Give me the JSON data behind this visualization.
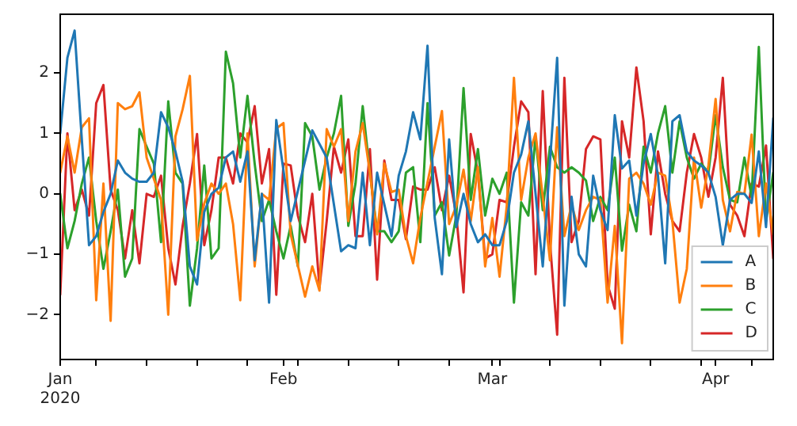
{
  "chart_data": {
    "type": "line",
    "x": [
      "2020-01-01",
      "2020-01-02",
      "2020-01-03",
      "2020-01-04",
      "2020-01-05",
      "2020-01-06",
      "2020-01-07",
      "2020-01-08",
      "2020-01-09",
      "2020-01-10",
      "2020-01-11",
      "2020-01-12",
      "2020-01-13",
      "2020-01-14",
      "2020-01-15",
      "2020-01-16",
      "2020-01-17",
      "2020-01-18",
      "2020-01-19",
      "2020-01-20",
      "2020-01-21",
      "2020-01-22",
      "2020-01-23",
      "2020-01-24",
      "2020-01-25",
      "2020-01-26",
      "2020-01-27",
      "2020-01-28",
      "2020-01-29",
      "2020-01-30",
      "2020-01-31",
      "2020-02-01",
      "2020-02-02",
      "2020-02-03",
      "2020-02-04",
      "2020-02-05",
      "2020-02-06",
      "2020-02-07",
      "2020-02-08",
      "2020-02-09",
      "2020-02-10",
      "2020-02-11",
      "2020-02-12",
      "2020-02-13",
      "2020-02-14",
      "2020-02-15",
      "2020-02-16",
      "2020-02-17",
      "2020-02-18",
      "2020-02-19",
      "2020-02-20",
      "2020-02-21",
      "2020-02-22",
      "2020-02-23",
      "2020-02-24",
      "2020-02-25",
      "2020-02-26",
      "2020-02-27",
      "2020-02-28",
      "2020-02-29",
      "2020-03-01",
      "2020-03-02",
      "2020-03-03",
      "2020-03-04",
      "2020-03-05",
      "2020-03-06",
      "2020-03-07",
      "2020-03-08",
      "2020-03-09",
      "2020-03-10",
      "2020-03-11",
      "2020-03-12",
      "2020-03-13",
      "2020-03-14",
      "2020-03-15",
      "2020-03-16",
      "2020-03-17",
      "2020-03-18",
      "2020-03-19",
      "2020-03-20",
      "2020-03-21",
      "2020-03-22",
      "2020-03-23",
      "2020-03-24",
      "2020-03-25",
      "2020-03-26",
      "2020-03-27",
      "2020-03-28",
      "2020-03-29",
      "2020-03-30",
      "2020-03-31",
      "2020-04-01",
      "2020-04-02",
      "2020-04-03",
      "2020-04-04",
      "2020-04-05",
      "2020-04-06",
      "2020-04-07",
      "2020-04-08",
      "2020-04-09"
    ],
    "series": [
      {
        "name": "A",
        "color": "#1f77b4",
        "x": [
          "2020-01-01",
          "2020-01-02",
          "2020-01-03",
          "2020-01-04",
          "2020-01-05",
          "2020-01-06",
          "2020-01-07",
          "2020-01-08",
          "2020-01-09",
          "2020-01-10",
          "2020-01-11",
          "2020-01-12",
          "2020-01-13",
          "2020-01-14",
          "2020-01-15",
          "2020-01-16",
          "2020-01-17",
          "2020-01-18",
          "2020-01-19",
          "2020-01-20",
          "2020-01-21",
          "2020-01-22",
          "2020-01-23",
          "2020-01-24",
          "2020-01-25",
          "2020-01-26",
          "2020-01-27",
          "2020-01-28",
          "2020-01-29",
          "2020-01-30",
          "2020-01-31",
          "2020-02-02",
          "2020-02-05",
          "2020-02-07",
          "2020-02-09",
          "2020-02-10",
          "2020-02-11",
          "2020-02-12",
          "2020-02-13",
          "2020-02-14",
          "2020-02-16",
          "2020-02-17",
          "2020-02-18",
          "2020-02-19",
          "2020-02-20",
          "2020-02-21",
          "2020-02-22",
          "2020-02-23",
          "2020-02-24",
          "2020-02-25",
          "2020-02-26",
          "2020-02-27",
          "2020-02-28",
          "2020-02-29",
          "2020-03-01",
          "2020-03-02",
          "2020-03-03",
          "2020-03-04",
          "2020-03-05",
          "2020-03-06",
          "2020-03-08",
          "2020-03-10",
          "2020-03-11",
          "2020-03-12",
          "2020-03-13",
          "2020-03-14",
          "2020-03-15",
          "2020-03-16",
          "2020-03-17",
          "2020-03-18",
          "2020-03-19",
          "2020-03-20",
          "2020-03-21",
          "2020-03-22",
          "2020-03-23",
          "2020-03-24",
          "2020-03-25",
          "2020-03-26",
          "2020-03-27",
          "2020-03-28",
          "2020-03-29",
          "2020-03-30",
          "2020-03-31",
          "2020-04-01",
          "2020-04-02",
          "2020-04-03",
          "2020-04-04",
          "2020-04-05",
          "2020-04-06",
          "2020-04-07",
          "2020-04-08",
          "2020-04-09"
        ],
        "values": [
          1.0,
          2.25,
          2.7,
          0.9,
          -0.85,
          -0.7,
          -0.3,
          0.0,
          0.55,
          0.35,
          0.25,
          0.2,
          0.2,
          0.35,
          1.35,
          1.1,
          0.7,
          0.2,
          -1.2,
          -1.5,
          -0.3,
          0.0,
          0.1,
          0.6,
          0.7,
          0.2,
          0.7,
          -1.1,
          0.0,
          -1.8,
          1.22,
          -0.45,
          1.05,
          0.6,
          -0.95,
          -0.85,
          -0.9,
          0.35,
          -0.85,
          0.35,
          -0.7,
          0.3,
          0.7,
          1.35,
          0.9,
          2.45,
          -0.4,
          -1.33,
          0.9,
          -0.55,
          0.0,
          -0.5,
          -0.8,
          -0.67,
          -0.85,
          -0.85,
          -0.45,
          0.35,
          0.65,
          1.2,
          -1.2,
          2.25,
          -1.85,
          -0.05,
          -1.0,
          -1.2,
          0.3,
          -0.27,
          -0.6,
          1.3,
          0.42,
          0.55,
          -0.36,
          0.5,
          0.99,
          0.3,
          -1.15,
          1.2,
          1.3,
          0.7,
          0.55,
          0.47,
          0.35,
          -0.05,
          -0.85,
          -0.1,
          0.0,
          0.0,
          -0.15,
          0.7,
          -0.55,
          1.25
        ]
      },
      {
        "name": "B",
        "color": "#ff7f0e",
        "x": [
          "2020-01-01",
          "2020-01-02",
          "2020-01-03",
          "2020-01-04",
          "2020-01-05",
          "2020-01-06",
          "2020-01-07",
          "2020-01-08",
          "2020-01-09",
          "2020-01-10",
          "2020-01-11",
          "2020-01-12",
          "2020-01-13",
          "2020-01-15",
          "2020-01-16",
          "2020-01-17",
          "2020-01-18",
          "2020-01-19",
          "2020-01-20",
          "2020-01-21",
          "2020-01-22",
          "2020-01-23",
          "2020-01-24",
          "2020-01-25",
          "2020-01-26",
          "2020-01-27",
          "2020-01-28",
          "2020-01-29",
          "2020-01-30",
          "2020-01-31",
          "2020-02-01",
          "2020-02-02",
          "2020-02-04",
          "2020-02-05",
          "2020-02-06",
          "2020-02-07",
          "2020-02-08",
          "2020-02-09",
          "2020-02-10",
          "2020-02-11",
          "2020-02-12",
          "2020-02-13",
          "2020-02-14",
          "2020-02-15",
          "2020-02-16",
          "2020-02-17",
          "2020-02-18",
          "2020-02-19",
          "2020-02-20",
          "2020-02-23",
          "2020-02-24",
          "2020-02-25",
          "2020-02-26",
          "2020-02-27",
          "2020-02-28",
          "2020-02-29",
          "2020-03-01",
          "2020-03-02",
          "2020-03-03",
          "2020-03-04",
          "2020-03-05",
          "2020-03-06",
          "2020-03-07",
          "2020-03-09",
          "2020-03-10",
          "2020-03-11",
          "2020-03-12",
          "2020-03-13",
          "2020-03-14",
          "2020-03-15",
          "2020-03-16",
          "2020-03-17",
          "2020-03-18",
          "2020-03-19",
          "2020-03-20",
          "2020-03-21",
          "2020-03-22",
          "2020-03-23",
          "2020-03-24",
          "2020-03-25",
          "2020-03-26",
          "2020-03-27",
          "2020-03-28",
          "2020-03-29",
          "2020-03-30",
          "2020-03-31",
          "2020-04-01",
          "2020-04-02",
          "2020-04-03",
          "2020-04-04",
          "2020-04-05",
          "2020-04-06",
          "2020-04-07",
          "2020-04-08",
          "2020-04-09"
        ],
        "values": [
          0.35,
          0.95,
          0.35,
          1.1,
          1.25,
          -1.76,
          0.17,
          -2.1,
          1.5,
          1.4,
          1.45,
          1.68,
          0.6,
          -0.1,
          -2.0,
          0.95,
          1.4,
          1.95,
          -0.77,
          -0.16,
          0.17,
          0.0,
          0.17,
          -0.5,
          -1.76,
          1.0,
          -1.2,
          0.0,
          -0.1,
          1.08,
          1.17,
          -0.67,
          -1.7,
          -1.2,
          -1.6,
          1.07,
          0.78,
          1.07,
          -0.45,
          0.7,
          1.17,
          0.35,
          -0.67,
          0.5,
          0.03,
          0.07,
          -0.7,
          -1.15,
          -0.4,
          1.37,
          -0.5,
          -0.2,
          0.4,
          -0.45,
          0.44,
          -1.2,
          -0.4,
          -1.37,
          -0.2,
          1.92,
          -0.1,
          0.6,
          1.0,
          -1.1,
          1.1,
          -0.7,
          -0.18,
          -0.6,
          -0.27,
          -0.05,
          -0.1,
          -1.8,
          -0.53,
          -2.47,
          0.25,
          0.35,
          0.17,
          -0.18,
          0.35,
          0.3,
          -0.45,
          -1.8,
          -1.24,
          0.6,
          -0.23,
          0.47,
          1.57,
          -0.1,
          -0.62,
          0.03,
          0.0,
          0.98,
          -0.7,
          0.17,
          -0.67
        ]
      },
      {
        "name": "C",
        "color": "#2ca02c",
        "values": [
          0.0,
          -0.9,
          -0.45,
          0.17,
          0.6,
          -0.45,
          -1.24,
          -0.62,
          0.07,
          -1.37,
          -1.07,
          1.07,
          0.78,
          0.5,
          -0.8,
          1.53,
          0.35,
          0.17,
          -1.85,
          -0.9,
          0.47,
          -1.07,
          -0.9,
          2.35,
          1.83,
          0.6,
          1.62,
          0.5,
          -0.45,
          -0.1,
          -0.62,
          -1.07,
          -0.53,
          -1.2,
          1.17,
          0.95,
          0.07,
          0.6,
          1.0,
          1.62,
          -0.53,
          0.17,
          1.45,
          0.35,
          -0.62,
          -0.62,
          -0.8,
          -0.62,
          0.35,
          0.44,
          -0.8,
          1.5,
          -0.36,
          -0.14,
          -1.02,
          -0.36,
          1.75,
          -0.1,
          0.74,
          -0.36,
          0.25,
          0.0,
          0.35,
          -1.8,
          -0.14,
          -0.36,
          0.95,
          -0.27,
          0.78,
          0.44,
          0.35,
          0.44,
          0.35,
          0.22,
          -0.45,
          -0.05,
          -0.27,
          0.6,
          -0.94,
          -0.18,
          -0.62,
          0.78,
          0.35,
          1.0,
          1.45,
          0.35,
          1.2,
          0.6,
          0.25,
          0.5,
          0.35,
          1.3,
          0.44,
          -0.1,
          -0.14,
          0.6,
          -0.05,
          2.43,
          -0.45,
          0.35
        ]
      },
      {
        "name": "D",
        "color": "#d62728",
        "values": [
          -1.67,
          1.0,
          -0.27,
          0.07,
          -0.36,
          1.5,
          1.8,
          0.07,
          -0.27,
          -1.07,
          -0.27,
          -1.15,
          0.0,
          -0.05,
          0.3,
          -0.9,
          -1.5,
          -0.53,
          0.17,
          0.99,
          -0.85,
          -0.27,
          0.6,
          0.6,
          0.17,
          1.0,
          0.85,
          1.45,
          0.17,
          0.74,
          -1.67,
          0.5,
          0.47,
          -0.36,
          -0.8,
          0.0,
          -1.55,
          -0.45,
          0.78,
          0.35,
          0.9,
          -0.7,
          -0.7,
          0.74,
          -1.42,
          0.55,
          -0.1,
          -0.1,
          -0.75,
          0.12,
          0.07,
          0.07,
          0.44,
          -0.27,
          0.3,
          -0.36,
          -1.63,
          0.99,
          0.35,
          -1.07,
          -1.0,
          -0.1,
          -0.14,
          0.78,
          1.53,
          1.35,
          -1.33,
          1.7,
          -0.8,
          -2.33,
          1.92,
          -0.8,
          -0.45,
          0.74,
          0.95,
          0.9,
          -1.5,
          -1.9,
          1.2,
          0.6,
          2.09,
          1.2,
          -0.67,
          0.7,
          0.0,
          -0.45,
          -0.62,
          0.35,
          0.99,
          0.6,
          -0.05,
          0.6,
          1.92,
          -0.18,
          -0.36,
          -0.7,
          0.17,
          0.12,
          0.8,
          -1.07
        ]
      }
    ],
    "xlim": [
      "2020-01-01",
      "2020-04-09"
    ],
    "xticks": [
      {
        "value": "2020-01-01",
        "label": "Jan\n2020"
      },
      {
        "value": "2020-01-06",
        "label": null
      },
      {
        "value": "2020-01-13",
        "label": null
      },
      {
        "value": "2020-01-20",
        "label": null
      },
      {
        "value": "2020-01-27",
        "label": null
      },
      {
        "value": "2020-02-01",
        "label": "Feb"
      },
      {
        "value": "2020-02-03",
        "label": null
      },
      {
        "value": "2020-02-10",
        "label": null
      },
      {
        "value": "2020-02-17",
        "label": null
      },
      {
        "value": "2020-02-24",
        "label": null
      },
      {
        "value": "2020-03-01",
        "label": "Mar"
      },
      {
        "value": "2020-03-02",
        "label": null
      },
      {
        "value": "2020-03-09",
        "label": null
      },
      {
        "value": "2020-03-16",
        "label": null
      },
      {
        "value": "2020-03-23",
        "label": null
      },
      {
        "value": "2020-03-30",
        "label": null
      },
      {
        "value": "2020-04-01",
        "label": "Apr"
      },
      {
        "value": "2020-04-06",
        "label": null
      }
    ],
    "ylim": [
      -2.74,
      2.97
    ],
    "yticks": [
      -2,
      -1,
      0,
      1,
      2
    ],
    "grid": false,
    "legend": "bottom right",
    "marker": "none",
    "line_style": "solid"
  }
}
